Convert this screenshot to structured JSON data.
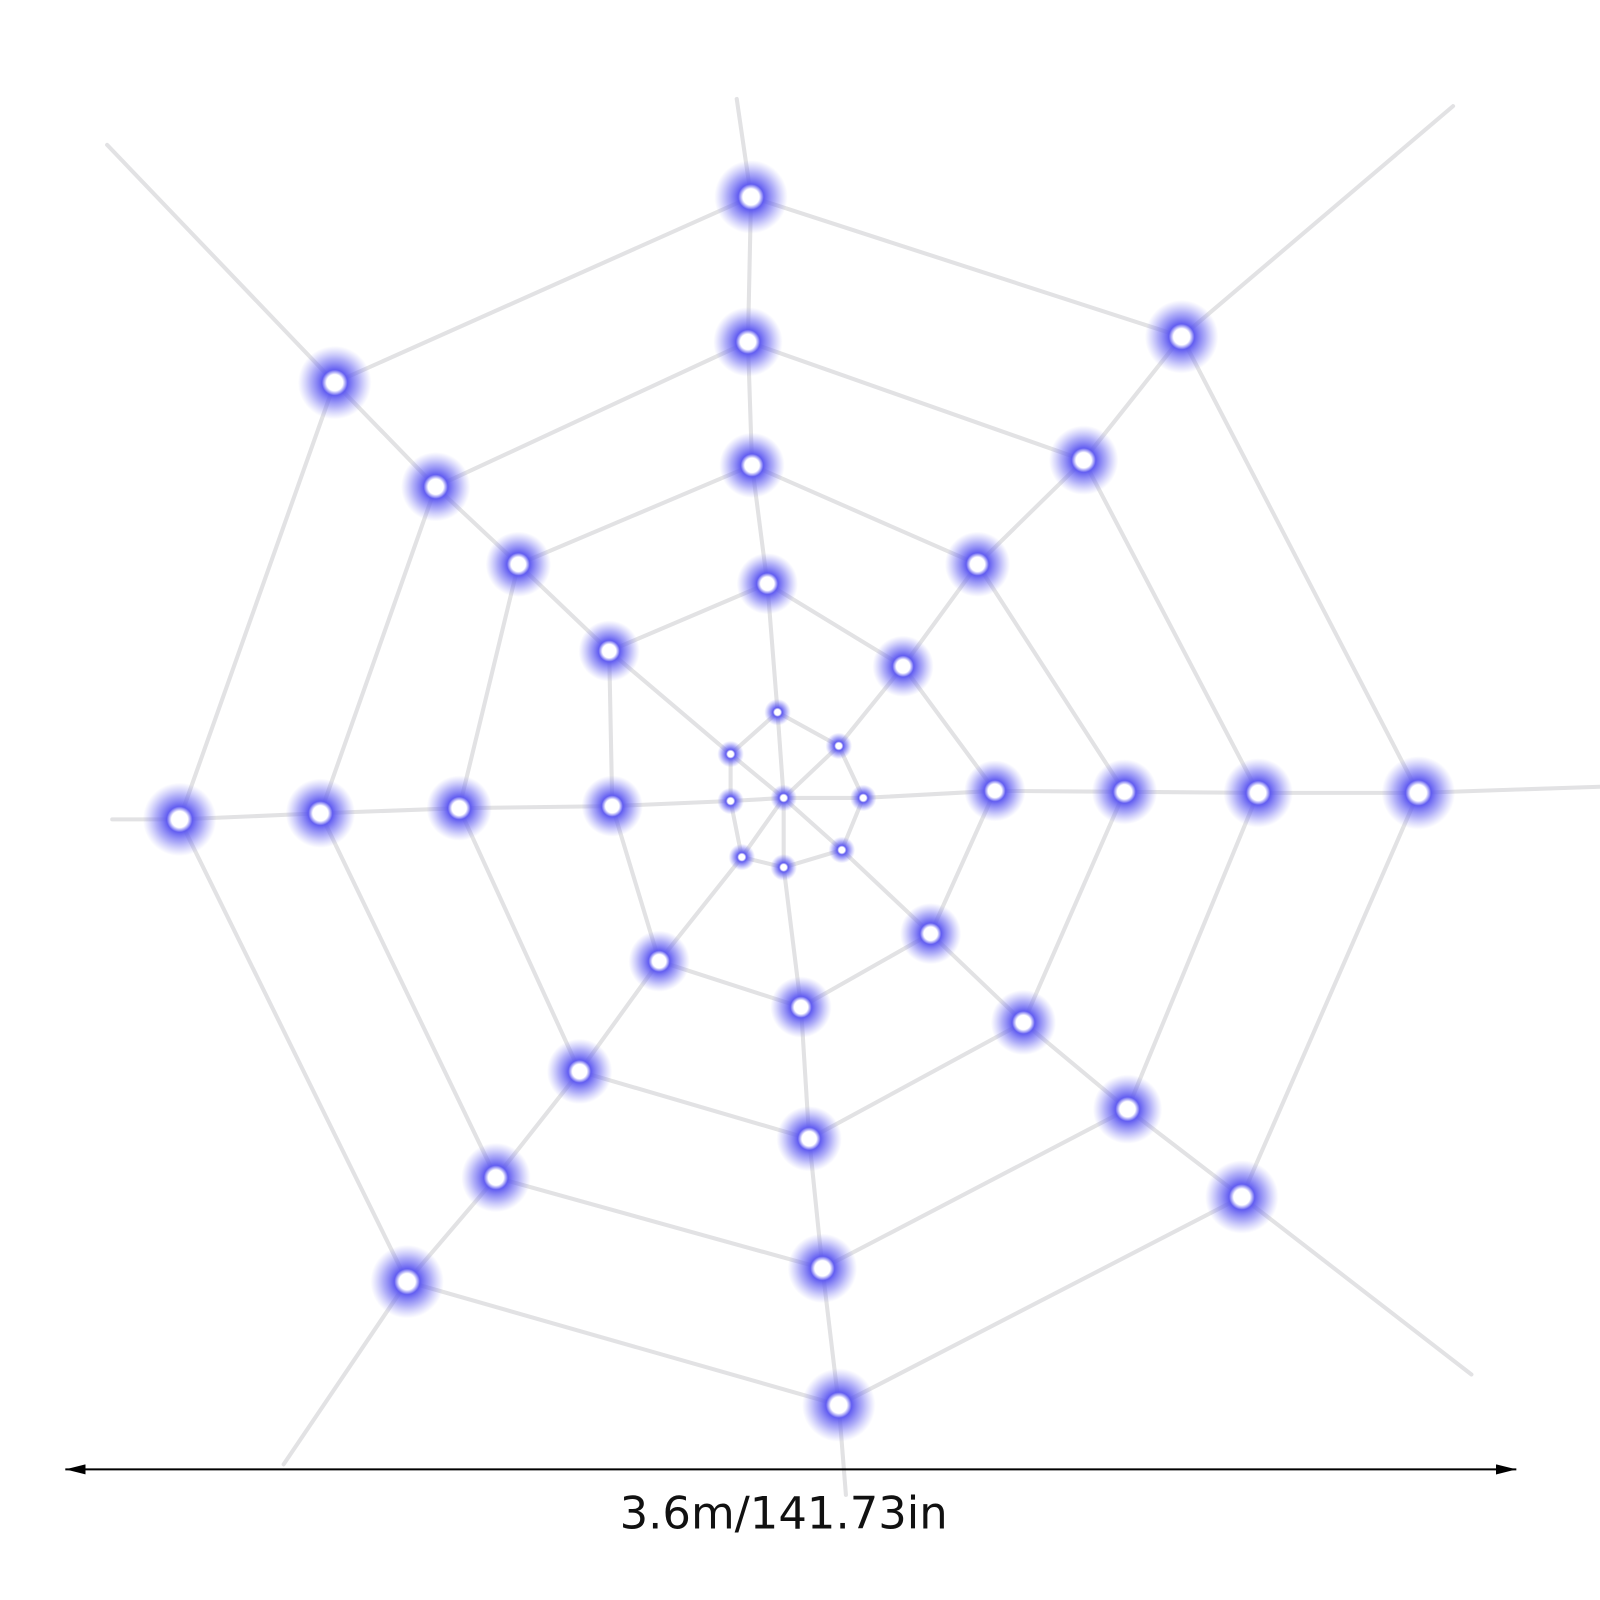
{
  "dimension": {
    "label": "3.6m/141.73in"
  }
}
